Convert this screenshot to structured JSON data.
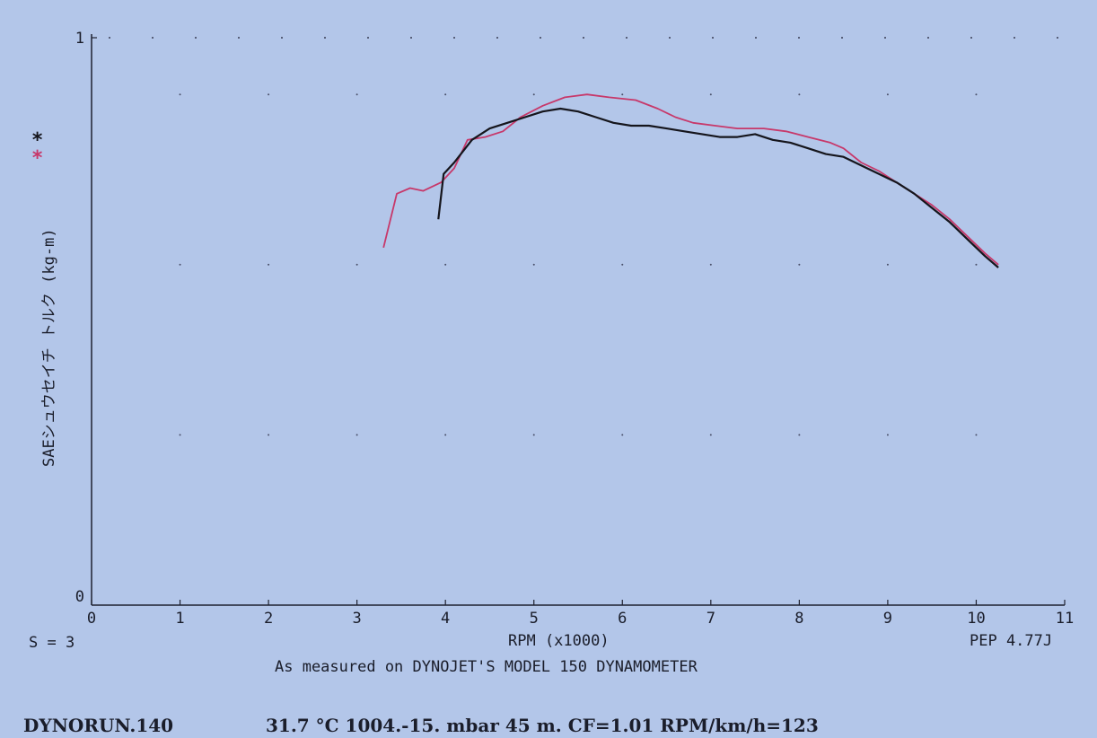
{
  "chart_data": {
    "type": "line",
    "title": "",
    "xlabel": "RPM (x1000)",
    "ylabel": "SAEシュウセイチ トルク (kg-m)",
    "xlim": [
      0,
      11
    ],
    "ylim": [
      0,
      1
    ],
    "x_ticks": [
      "0",
      "1",
      "2",
      "3",
      "4",
      "5",
      "6",
      "7",
      "8",
      "9",
      "10",
      "11"
    ],
    "y_ticks": [
      "0",
      "1"
    ],
    "grid": "dotted",
    "legend": "left-vertical",
    "series": [
      {
        "color": "#15151c",
        "legend_mark": "*",
        "x": [
          3.92,
          3.98,
          4.1,
          4.3,
          4.5,
          4.7,
          4.9,
          5.1,
          5.3,
          5.5,
          5.7,
          5.9,
          6.1,
          6.3,
          6.5,
          6.7,
          6.9,
          7.1,
          7.3,
          7.5,
          7.7,
          7.9,
          8.1,
          8.3,
          8.5,
          8.7,
          8.9,
          9.1,
          9.3,
          9.5,
          9.7,
          9.9,
          10.1,
          10.25
        ],
        "y": [
          0.68,
          0.76,
          0.78,
          0.82,
          0.84,
          0.85,
          0.86,
          0.87,
          0.875,
          0.87,
          0.86,
          0.85,
          0.845,
          0.845,
          0.84,
          0.835,
          0.83,
          0.825,
          0.825,
          0.83,
          0.82,
          0.815,
          0.805,
          0.795,
          0.79,
          0.775,
          0.76,
          0.745,
          0.725,
          0.7,
          0.675,
          0.645,
          0.615,
          0.595
        ]
      },
      {
        "color": "#c7386a",
        "legend_mark": "*",
        "x": [
          3.3,
          3.45,
          3.6,
          3.75,
          3.95,
          4.1,
          4.25,
          4.45,
          4.65,
          4.85,
          5.1,
          5.35,
          5.6,
          5.85,
          6.15,
          6.4,
          6.6,
          6.8,
          7.05,
          7.3,
          7.6,
          7.85,
          8.1,
          8.35,
          8.5,
          8.7,
          8.9,
          9.1,
          9.3,
          9.5,
          9.7,
          9.9,
          10.1,
          10.25
        ],
        "y": [
          0.63,
          0.725,
          0.735,
          0.73,
          0.745,
          0.77,
          0.82,
          0.825,
          0.835,
          0.86,
          0.88,
          0.895,
          0.9,
          0.895,
          0.89,
          0.875,
          0.86,
          0.85,
          0.845,
          0.84,
          0.84,
          0.835,
          0.825,
          0.815,
          0.805,
          0.78,
          0.765,
          0.745,
          0.725,
          0.705,
          0.68,
          0.65,
          0.62,
          0.6
        ]
      }
    ]
  },
  "footer": {
    "smoothing": "S = 3",
    "software": "PEP 4.77J",
    "measured_note": "As measured on DYNOJET'S MODEL 150 DYNAMOMETER",
    "run_name": "DYNORUN.140",
    "conditions": "31.7 °C  1004.-15. mbar  45 m.  CF=1.01  RPM/km/h=123"
  }
}
